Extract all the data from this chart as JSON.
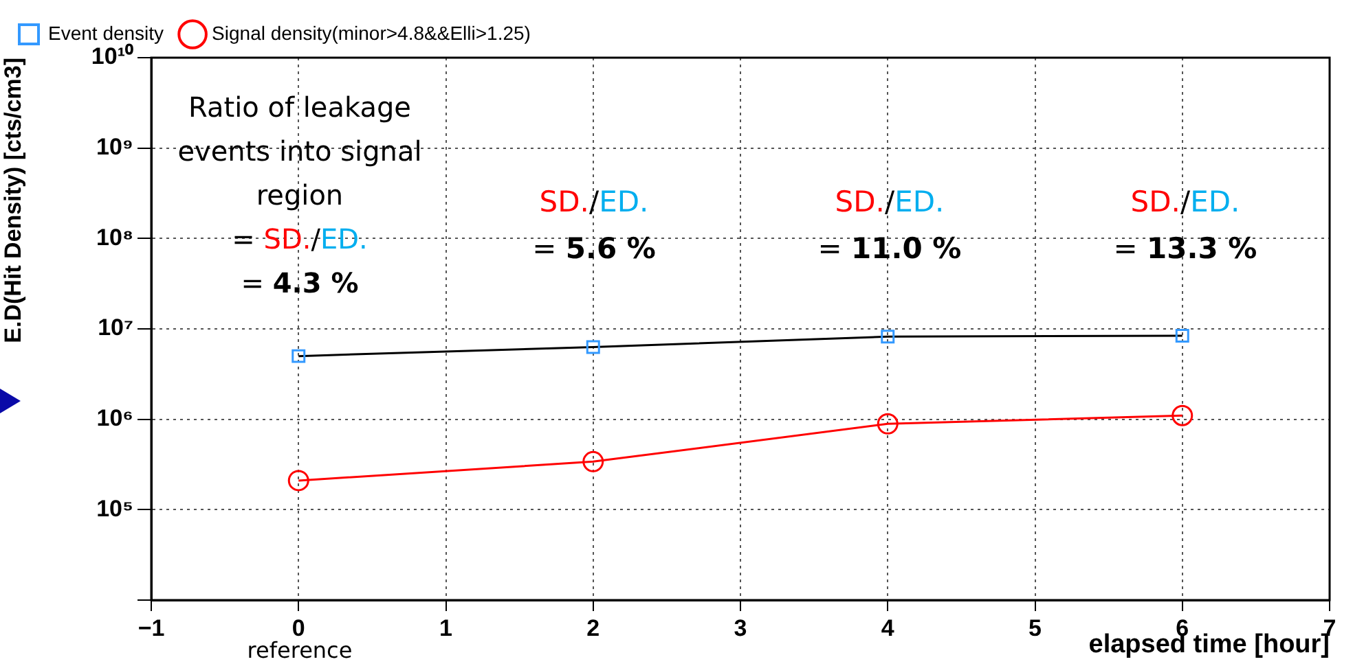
{
  "chart_data": {
    "type": "line",
    "xlabel": "elapsed time [hour]",
    "ylabel": "E.D(Hit Density) [cts/cm3]",
    "x": [
      0,
      2,
      4,
      6
    ],
    "series": [
      {
        "name": "Event density",
        "color": "#000000",
        "colors": [
          "#3399ff",
          "#3399ff",
          "#3399ff",
          "#3399ff"
        ],
        "marker": "square",
        "values": [
          5000000.0,
          6300000.0,
          8200000.0,
          8400000.0
        ]
      },
      {
        "name": "Signal density(minor>4.8&&Elli>1.25)",
        "color": "#ff0000",
        "marker": "circle",
        "values": [
          210000.0,
          340000.0,
          890000.0,
          1100000.0
        ]
      }
    ],
    "xlim": [
      -1,
      7
    ],
    "xticks": [
      {
        "value": -1,
        "label": "−1"
      },
      0,
      1,
      2,
      3,
      4,
      5,
      6,
      7
    ],
    "ylim": [
      10000,
      10000000000
    ],
    "yticks": [
      {
        "value": 10000,
        "label": null
      },
      {
        "value": 100000,
        "label": "10⁵"
      },
      {
        "value": 1000000,
        "label": "10⁶"
      },
      {
        "value": 10000000,
        "label": "10⁷"
      },
      {
        "value": 100000000,
        "label": "10⁸"
      },
      {
        "value": 1000000000,
        "label": "10⁹"
      },
      {
        "value": 10000000000,
        "label": "10¹⁰"
      }
    ],
    "log": true,
    "grid": true,
    "legend": "top left",
    "annotations": [
      "Ratio of leakage events into signal region = SD./ED. = 4.3 %",
      "SD./ED. = 5.6 %",
      "SD./ED. = 11.0 %",
      "SD./ED. = 13.3 %",
      "reference"
    ]
  }
}
